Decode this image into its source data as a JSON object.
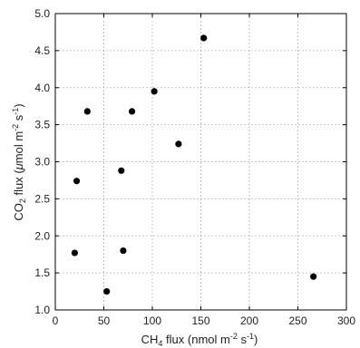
{
  "chart_data": {
    "type": "scatter",
    "x": [
      20,
      22,
      33,
      53,
      68,
      70,
      79,
      102,
      127,
      153,
      266
    ],
    "y": [
      1.77,
      2.74,
      3.68,
      1.25,
      2.88,
      1.8,
      3.68,
      3.95,
      3.24,
      4.67,
      1.45
    ],
    "xlim": [
      0,
      300
    ],
    "ylim": [
      1.0,
      5.0
    ],
    "xticks": [
      "0",
      "50",
      "100",
      "150",
      "200",
      "250",
      "300"
    ],
    "yticks": [
      "1.0",
      "1.5",
      "2.0",
      "2.5",
      "3.0",
      "3.5",
      "4.0",
      "4.5",
      "5.0"
    ],
    "xlabel": "CH4 flux (nmol m-2 s-1)",
    "ylabel": "CO2 flux (μmol m-2 s-1)",
    "grid": true,
    "marker_color": "#000000"
  }
}
